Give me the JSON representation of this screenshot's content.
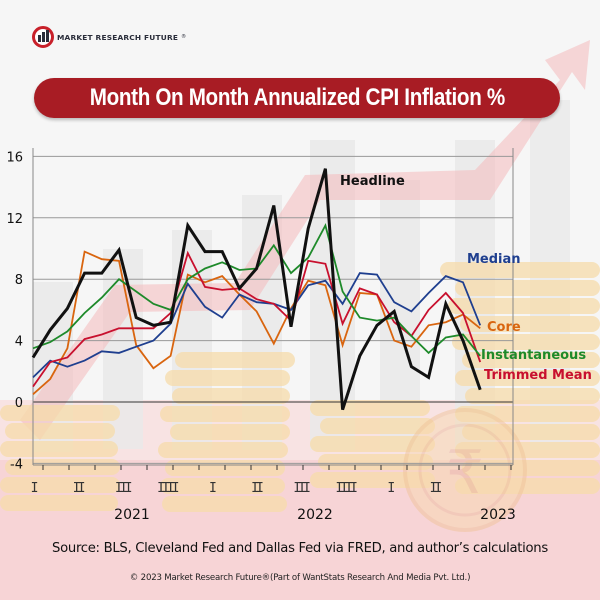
{
  "brand": {
    "logo_text": "MARKET RESEARCH FUTURE",
    "registered_mark": "®",
    "icon": "magnifier-bar-chart-icon"
  },
  "colors": {
    "title_bg": "#a81c24",
    "headline": "#111111",
    "median": "#1f3f8f",
    "core": "#d9650f",
    "instantaneous": "#1e8a2a",
    "trimmed_mean": "#c8102e",
    "accent_arrow": "#f3b7b9",
    "coin": "#f6d9a8"
  },
  "chart_data": {
    "type": "line",
    "title": "Month On Month Annualized CPI Inflation %",
    "xlabel": "",
    "ylabel": "",
    "ylim": [
      -4,
      16
    ],
    "yticks": [
      "16",
      "12",
      "8",
      "4",
      "0",
      "-4"
    ],
    "ytick_values": [
      16,
      12,
      8,
      4,
      0,
      -4
    ],
    "grid": true,
    "quarter_labels": [
      "I",
      "II",
      "III",
      "IIII",
      "I",
      "II",
      "III",
      "IIII",
      "I",
      "II"
    ],
    "year_labels": [
      "2021",
      "2022",
      "2023"
    ],
    "x": [
      "2021-01",
      "2021-02",
      "2021-03",
      "2021-04",
      "2021-05",
      "2021-06",
      "2021-07",
      "2021-08",
      "2021-09",
      "2021-10",
      "2021-11",
      "2021-12",
      "2022-01",
      "2022-02",
      "2022-03",
      "2022-04",
      "2022-05",
      "2022-06",
      "2022-07",
      "2022-08",
      "2022-09",
      "2022-10",
      "2022-11",
      "2022-12",
      "2023-01",
      "2023-02",
      "2023-03"
    ],
    "series": [
      {
        "name": "Headline",
        "key": "headline",
        "values": [
          2.9,
          4.7,
          6.1,
          8.4,
          8.4,
          9.9,
          5.5,
          5.0,
          5.2,
          11.5,
          9.8,
          9.8,
          7.4,
          8.7,
          12.8,
          4.9,
          11.3,
          15.2,
          -0.5,
          3.0,
          5.0,
          5.9,
          2.3,
          1.6,
          6.4,
          4.0,
          0.8
        ]
      },
      {
        "name": "Median",
        "key": "median",
        "values": [
          1.6,
          2.7,
          2.3,
          2.7,
          3.3,
          3.2,
          3.6,
          4.0,
          5.1,
          7.7,
          6.2,
          5.5,
          7.0,
          6.5,
          6.4,
          6.0,
          7.6,
          7.9,
          6.4,
          8.4,
          8.3,
          6.5,
          5.9,
          7.1,
          8.2,
          7.8,
          5.0
        ]
      },
      {
        "name": "Core",
        "key": "core",
        "values": [
          0.5,
          1.5,
          3.5,
          9.8,
          9.3,
          9.2,
          3.7,
          2.2,
          3.0,
          8.3,
          7.8,
          8.2,
          7.0,
          5.9,
          3.8,
          6.1,
          7.9,
          7.6,
          3.7,
          7.1,
          7.0,
          4.0,
          3.6,
          5.0,
          5.2,
          5.7,
          4.8
        ]
      },
      {
        "name": "Instantaneous",
        "key": "instantaneous",
        "values": [
          3.5,
          3.9,
          4.6,
          5.8,
          6.8,
          8.0,
          7.2,
          6.4,
          6.0,
          8.0,
          8.7,
          9.1,
          8.6,
          8.7,
          10.2,
          8.4,
          9.4,
          11.5,
          7.2,
          5.5,
          5.3,
          5.5,
          4.3,
          3.2,
          4.2,
          4.4,
          3.0
        ]
      },
      {
        "name": "Trimmed Mean",
        "key": "trimmed_mean",
        "values": [
          1.0,
          2.6,
          2.9,
          4.1,
          4.4,
          4.8,
          4.8,
          4.8,
          5.8,
          9.7,
          7.5,
          7.3,
          7.4,
          6.7,
          6.4,
          5.3,
          9.2,
          9.0,
          5.1,
          7.4,
          7.0,
          5.2,
          4.3,
          6.0,
          7.1,
          5.8,
          2.6
        ]
      }
    ],
    "annotations": [
      {
        "text": "Headline",
        "series": "headline"
      },
      {
        "text": "Median",
        "series": "median"
      },
      {
        "text": "Core",
        "series": "core"
      },
      {
        "text": "Instantaneous",
        "series": "instantaneous"
      },
      {
        "text": "Trimmed Mean",
        "series": "trimmed_mean"
      }
    ]
  },
  "footer": {
    "source": "Source: BLS, Cleveland Fed and Dallas Fed via FRED, and author’s calculations",
    "copyright": "© 2023 Market Research Future®(Part of WantStats Research And Media Pvt. Ltd.)"
  }
}
